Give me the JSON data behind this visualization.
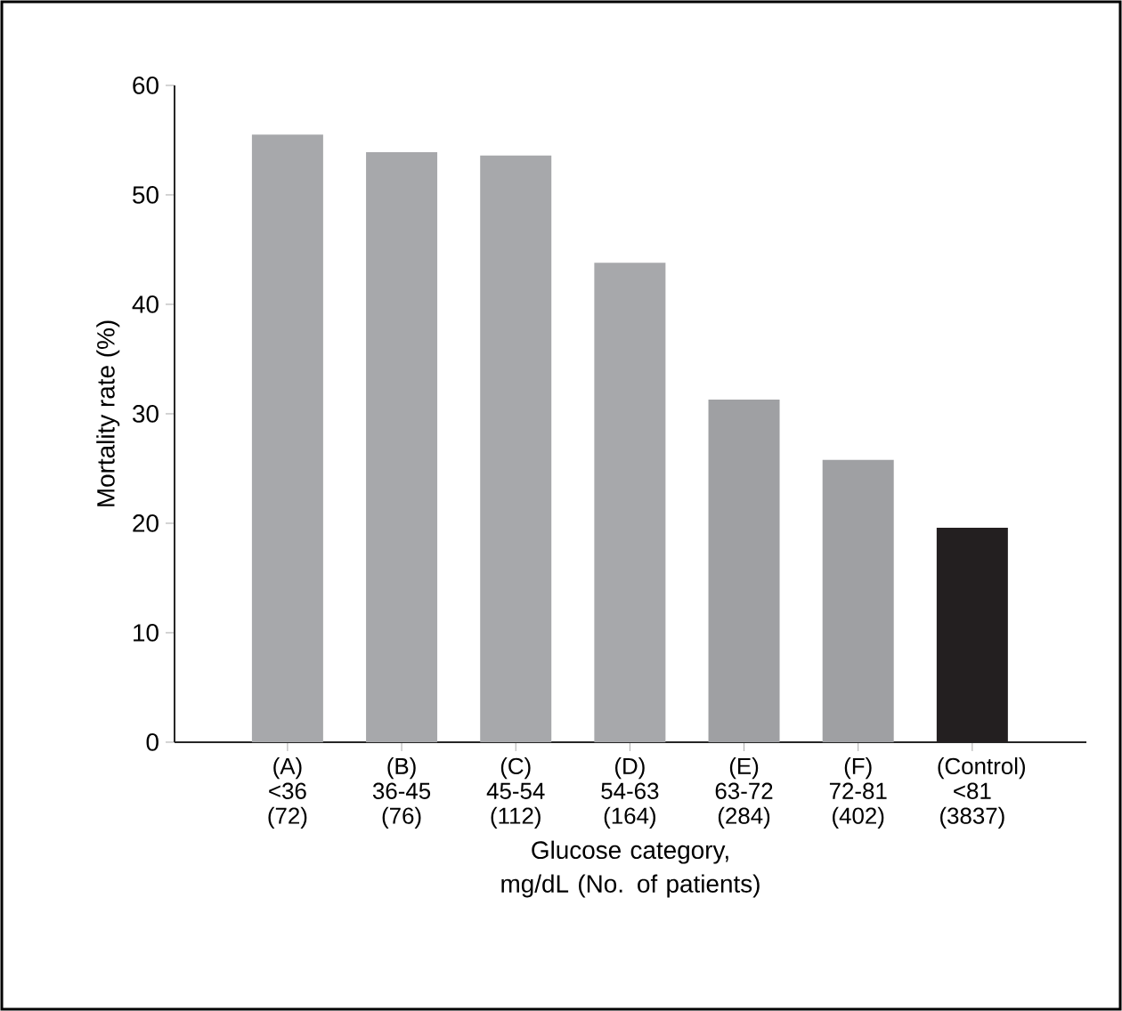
{
  "chart_data": {
    "type": "bar",
    "xlabel": "Glucose category, mg/dL (No. of patients)",
    "ylabel": "Mortality rate (%)",
    "categories": [
      "(A) <36 (72)",
      "(B) 36-45 (76)",
      "(C) 45-54 (112)",
      "(D) 54-63 (164)",
      "(E) 63-72 (284)",
      "(F) 72-81 (402)",
      "(Control) <81 (3837)"
    ],
    "values": [
      55.5,
      53.9,
      53.6,
      43.8,
      31.3,
      25.8,
      19.6
    ],
    "colors": [
      "#a7a8ab",
      "#a7a8ab",
      "#a7a8ab",
      "#a7a8ab",
      "#9fa0a3",
      "#9fa0a3",
      "#231f20"
    ],
    "ylim": [
      0,
      60
    ],
    "yticks": [
      0,
      10,
      20,
      30,
      40,
      50,
      60
    ],
    "grid": false
  }
}
